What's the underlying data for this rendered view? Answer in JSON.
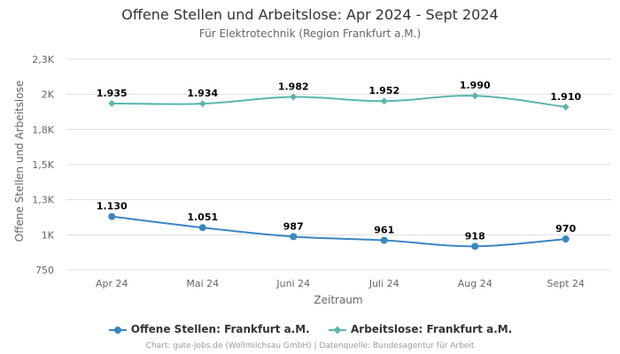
{
  "chart_data": {
    "type": "line",
    "title": "Offene Stellen und Arbeitslose: Apr 2024 - Sept 2024",
    "subtitle": "Für Elektrotechnik (Region Frankfurt a.M.)",
    "xlabel": "Zeitraum",
    "ylabel": "Offene Stellen und Arbeitslose",
    "categories": [
      "Apr 24",
      "Mai 24",
      "Juni 24",
      "Juli 24",
      "Aug 24",
      "Sept 24"
    ],
    "ylim": [
      750,
      2300
    ],
    "yticks": [
      {
        "value": 750,
        "label": "750"
      },
      {
        "value": 1000,
        "label": "1K"
      },
      {
        "value": 1250,
        "label": "1,3K"
      },
      {
        "value": 1500,
        "label": "1,5K"
      },
      {
        "value": 1750,
        "label": "1,8K"
      },
      {
        "value": 2000,
        "label": "2K"
      },
      {
        "value": 2250,
        "label": "2,3K"
      }
    ],
    "grid": true,
    "legend_position": "bottom",
    "series": [
      {
        "name": "Offene Stellen: Frankfurt a.M.",
        "color": "#3a86c0",
        "marker": "circle",
        "values": [
          1130,
          1051,
          987,
          961,
          918,
          970
        ],
        "labels": [
          "1.130",
          "1.051",
          "987",
          "961",
          "918",
          "970"
        ]
      },
      {
        "name": "Arbeitslose: Frankfurt a.M.",
        "color": "#5ab5b0",
        "marker": "diamond",
        "values": [
          1935,
          1934,
          1982,
          1952,
          1990,
          1910
        ],
        "labels": [
          "1.935",
          "1.934",
          "1.982",
          "1.952",
          "1.990",
          "1.910"
        ]
      }
    ]
  },
  "credits": "Chart: gute-jobs.de (Wollmilchsau GmbH) | Datenquelle: Bundesagentur für Arbeit"
}
